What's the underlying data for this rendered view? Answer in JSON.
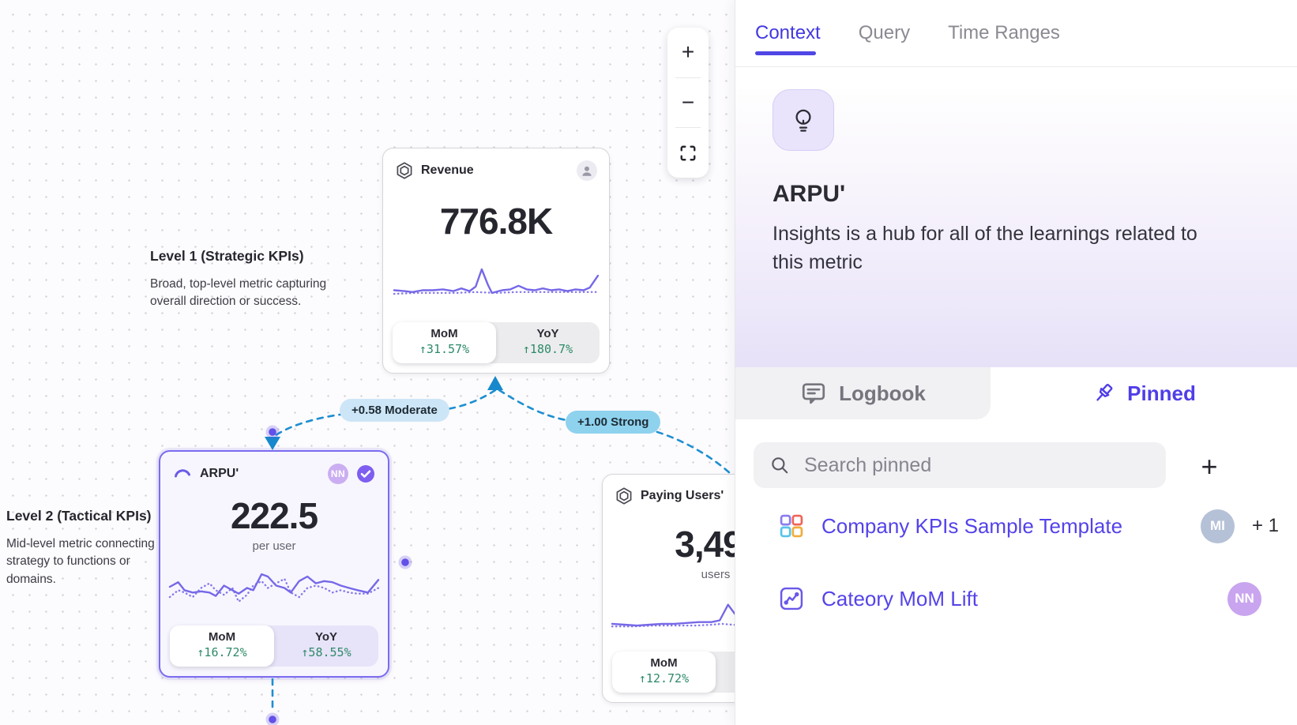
{
  "colors": {
    "accent_indigo": "#4f46e5",
    "sparkline_purple": "#7668e8",
    "positive_green": "#2e8a68",
    "edge_blue": "#1d8fd0",
    "label_moderate_bg": "#cde6f7",
    "label_strong_bg": "#8ed2ee"
  },
  "canvas": {
    "zoom_toolbar": {
      "zoom_in": "+",
      "zoom_out": "−"
    },
    "annotations": [
      {
        "title": "Level 1 (Strategic KPIs)",
        "body": "Broad, top-level metric capturing overall direction or success."
      },
      {
        "title": "Level 2 (Tactical KPIs)",
        "body": "Mid-level metric connecting strategy to functions or domains."
      }
    ],
    "edges": [
      {
        "label": "+0.58 Moderate"
      },
      {
        "label": "+1.00 Strong"
      }
    ],
    "cards": [
      {
        "title": "Revenue",
        "value": "776.8K",
        "mom_label": "MoM",
        "mom_value": "↑31.57%",
        "yoy_label": "YoY",
        "yoy_value": "↑180.7%",
        "spark_solid": [
          [
            0,
            30
          ],
          [
            5,
            31
          ],
          [
            9,
            32
          ],
          [
            14,
            30
          ],
          [
            19,
            30
          ],
          [
            24,
            29
          ],
          [
            29,
            31
          ],
          [
            33,
            28
          ],
          [
            37,
            31
          ],
          [
            40,
            26
          ],
          [
            43,
            7
          ],
          [
            46,
            24
          ],
          [
            48,
            33
          ],
          [
            53,
            30
          ],
          [
            57,
            29
          ],
          [
            61,
            25
          ],
          [
            65,
            29
          ],
          [
            69,
            30
          ],
          [
            73,
            28
          ],
          [
            77,
            30
          ],
          [
            81,
            29
          ],
          [
            85,
            31
          ],
          [
            89,
            29
          ],
          [
            93,
            30
          ],
          [
            96,
            27
          ],
          [
            100,
            14
          ]
        ],
        "spark_dotted": [
          [
            0,
            34
          ],
          [
            10,
            33
          ],
          [
            20,
            33
          ],
          [
            30,
            33
          ],
          [
            40,
            32
          ],
          [
            50,
            33
          ],
          [
            60,
            32
          ],
          [
            70,
            32
          ],
          [
            80,
            32
          ],
          [
            90,
            32
          ],
          [
            100,
            32
          ]
        ]
      },
      {
        "title": "ARPU'",
        "value": "222.5",
        "unit": "per user",
        "badge": "NN",
        "mom_label": "MoM",
        "mom_value": "↑16.72%",
        "yoy_label": "YoY",
        "yoy_value": "↑58.55%",
        "spark_solid": [
          [
            0,
            20
          ],
          [
            4,
            16
          ],
          [
            7,
            23
          ],
          [
            11,
            25
          ],
          [
            15,
            24
          ],
          [
            19,
            25
          ],
          [
            22,
            28
          ],
          [
            26,
            19
          ],
          [
            30,
            23
          ],
          [
            33,
            26
          ],
          [
            37,
            21
          ],
          [
            40,
            23
          ],
          [
            44,
            9
          ],
          [
            47,
            11
          ],
          [
            51,
            19
          ],
          [
            55,
            21
          ],
          [
            58,
            25
          ],
          [
            62,
            15
          ],
          [
            66,
            11
          ],
          [
            70,
            17
          ],
          [
            74,
            15
          ],
          [
            78,
            16
          ],
          [
            82,
            19
          ],
          [
            86,
            21
          ],
          [
            90,
            23
          ],
          [
            95,
            25
          ],
          [
            100,
            14
          ]
        ],
        "spark_dotted": [
          [
            0,
            29
          ],
          [
            4,
            23
          ],
          [
            7,
            25
          ],
          [
            11,
            29
          ],
          [
            15,
            21
          ],
          [
            19,
            17
          ],
          [
            22,
            23
          ],
          [
            26,
            27
          ],
          [
            30,
            21
          ],
          [
            33,
            33
          ],
          [
            37,
            27
          ],
          [
            40,
            19
          ],
          [
            44,
            15
          ],
          [
            47,
            21
          ],
          [
            51,
            17
          ],
          [
            55,
            13
          ],
          [
            58,
            25
          ],
          [
            62,
            29
          ],
          [
            66,
            21
          ],
          [
            70,
            19
          ],
          [
            74,
            21
          ],
          [
            78,
            25
          ],
          [
            82,
            23
          ],
          [
            86,
            25
          ],
          [
            90,
            26
          ],
          [
            95,
            26
          ],
          [
            100,
            21
          ]
        ]
      },
      {
        "title": "Paying Users'",
        "value": "3,49",
        "unit": "users",
        "mom_label": "MoM",
        "mom_value": "↑12.72%",
        "yoy_label": "",
        "yoy_value": "",
        "spark_solid": [
          [
            0,
            29
          ],
          [
            6,
            30
          ],
          [
            12,
            31
          ],
          [
            18,
            30
          ],
          [
            24,
            29
          ],
          [
            30,
            29
          ],
          [
            36,
            28
          ],
          [
            42,
            27
          ],
          [
            48,
            27
          ],
          [
            52,
            25
          ],
          [
            56,
            7
          ],
          [
            61,
            23
          ],
          [
            65,
            29
          ],
          [
            71,
            28
          ],
          [
            77,
            29
          ],
          [
            83,
            28
          ],
          [
            89,
            29
          ],
          [
            95,
            28
          ],
          [
            100,
            29
          ]
        ],
        "spark_dotted": [
          [
            0,
            32
          ],
          [
            10,
            32
          ],
          [
            20,
            31
          ],
          [
            30,
            31
          ],
          [
            40,
            31
          ],
          [
            48,
            30
          ],
          [
            53,
            29
          ],
          [
            58,
            30
          ],
          [
            64,
            31
          ],
          [
            72,
            31
          ],
          [
            80,
            31
          ],
          [
            90,
            31
          ],
          [
            100,
            31
          ]
        ]
      }
    ]
  },
  "sidebar": {
    "tabs": [
      {
        "label": "Context",
        "active": true
      },
      {
        "label": "Query",
        "active": false
      },
      {
        "label": "Time Ranges",
        "active": false
      }
    ],
    "metric": {
      "name": "ARPU'",
      "description": "Insights is a hub for all of the learnings related to this metric"
    },
    "subtabs": [
      {
        "label": "Logbook",
        "active": false
      },
      {
        "label": "Pinned",
        "active": true
      }
    ],
    "search": {
      "placeholder": "Search pinned",
      "add_label": "+"
    },
    "pinned": [
      {
        "label": "Company KPIs Sample Template",
        "avatar": "MI",
        "extra": "+ 1"
      },
      {
        "label": "Cateory MoM Lift",
        "avatar": "NN",
        "extra": ""
      }
    ]
  }
}
